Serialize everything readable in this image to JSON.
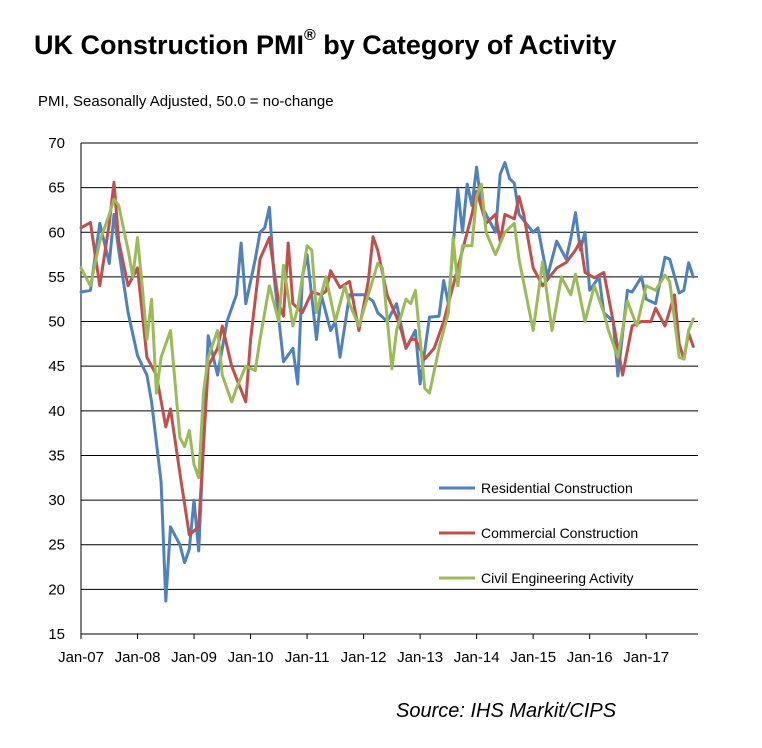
{
  "title": "UK Construction PMI",
  "title_mark": "®",
  "title_suffix": " by Category of Activity",
  "subtitle": "PMI, Seasonally Adjusted, 50.0 = no-change",
  "source": "Source: IHS Markit/CIPS",
  "chart_data": {
    "type": "line",
    "title": "UK Construction PMI® by Category of Activity",
    "ylabel": "PMI, Seasonally Adjusted, 50.0 = no-change",
    "ylim": [
      15,
      70
    ],
    "yticks": [
      15,
      20,
      25,
      30,
      35,
      40,
      45,
      50,
      55,
      60,
      65,
      70
    ],
    "xticks": [
      "Jan-07",
      "Jan-08",
      "Jan-09",
      "Jan-10",
      "Jan-11",
      "Jan-12",
      "Jan-13",
      "Jan-14",
      "Jan-15",
      "Jan-16",
      "Jan-17"
    ],
    "x_start": "Jan-07",
    "grid": true,
    "legend_position": "bottom-right",
    "series": [
      {
        "name": "Residential Construction",
        "color": "#4f81bd",
        "points": [
          [
            "Jan-07",
            53.3
          ],
          [
            "Mar-07",
            53.5
          ],
          [
            "May-07",
            61
          ],
          [
            "Jul-07",
            56.5
          ],
          [
            "Aug-07",
            62
          ],
          [
            "Sep-07",
            58
          ],
          [
            "Nov-07",
            51
          ],
          [
            "Jan-08",
            46.2
          ],
          [
            "Mar-08",
            44
          ],
          [
            "Apr-08",
            41
          ],
          [
            "Jun-08",
            32
          ],
          [
            "Jul-08",
            18.7
          ],
          [
            "Aug-08",
            27
          ],
          [
            "Oct-08",
            25
          ],
          [
            "Nov-08",
            23
          ],
          [
            "Dec-08",
            24.5
          ],
          [
            "Jan-09",
            30
          ],
          [
            "Feb-09",
            24.3
          ],
          [
            "Apr-09",
            48.4
          ],
          [
            "Jun-09",
            44
          ],
          [
            "Aug-09",
            50
          ],
          [
            "Oct-09",
            53
          ],
          [
            "Nov-09",
            58.8
          ],
          [
            "Dec-09",
            52
          ],
          [
            "Feb-10",
            57
          ],
          [
            "Mar-10",
            60
          ],
          [
            "Apr-10",
            60.5
          ],
          [
            "May-10",
            62.8
          ],
          [
            "Jun-10",
            55
          ],
          [
            "Aug-10",
            45.5
          ],
          [
            "Oct-10",
            47
          ],
          [
            "Nov-10",
            43
          ],
          [
            "Dec-10",
            55
          ],
          [
            "Jan-11",
            57.5
          ],
          [
            "Mar-11",
            48
          ],
          [
            "Apr-11",
            53
          ],
          [
            "Jun-11",
            49
          ],
          [
            "Jul-11",
            50
          ],
          [
            "Aug-11",
            46
          ],
          [
            "Oct-11",
            53
          ],
          [
            "Jan-12",
            53
          ],
          [
            "Mar-12",
            52.3
          ],
          [
            "Apr-12",
            51
          ],
          [
            "Jun-12",
            50
          ],
          [
            "Aug-12",
            52
          ],
          [
            "Oct-12",
            47
          ],
          [
            "Dec-12",
            49
          ],
          [
            "Jan-13",
            43
          ],
          [
            "Mar-13",
            50.5
          ],
          [
            "May-13",
            50.6
          ],
          [
            "Jun-13",
            54.6
          ],
          [
            "Jul-13",
            52
          ],
          [
            "Sep-13",
            64.8
          ],
          [
            "Oct-13",
            60
          ],
          [
            "Nov-13",
            65.4
          ],
          [
            "Dec-13",
            63
          ],
          [
            "Jan-14",
            67.3
          ],
          [
            "Feb-14",
            63
          ],
          [
            "May-14",
            60
          ],
          [
            "Jun-14",
            66.5
          ],
          [
            "Jul-14",
            67.8
          ],
          [
            "Aug-14",
            66
          ],
          [
            "Sep-14",
            65.5
          ],
          [
            "Oct-14",
            62
          ],
          [
            "Jan-15",
            60
          ],
          [
            "Feb-15",
            60.5
          ],
          [
            "Apr-15",
            55
          ],
          [
            "Jun-15",
            59
          ],
          [
            "Aug-15",
            57
          ],
          [
            "Sep-15",
            59.3
          ],
          [
            "Oct-15",
            62.2
          ],
          [
            "Nov-15",
            58
          ],
          [
            "Dec-15",
            60
          ],
          [
            "Jan-16",
            53.5
          ],
          [
            "Mar-16",
            55
          ],
          [
            "Apr-16",
            51
          ],
          [
            "Jun-16",
            50
          ],
          [
            "Jul-16",
            43.9
          ],
          [
            "Sep-16",
            53.5
          ],
          [
            "Oct-16",
            53.3
          ],
          [
            "Dec-16",
            55
          ],
          [
            "Jan-17",
            52.5
          ],
          [
            "Mar-17",
            52
          ],
          [
            "May-17",
            57.2
          ],
          [
            "Jun-17",
            57
          ],
          [
            "Aug-17",
            53.2
          ],
          [
            "Sep-17",
            53.5
          ],
          [
            "Oct-17",
            56.6
          ],
          [
            "Nov-17",
            55
          ]
        ]
      },
      {
        "name": "Commercial Construction",
        "color": "#c0504d",
        "points": [
          [
            "Jan-07",
            60.5
          ],
          [
            "Mar-07",
            61.1
          ],
          [
            "May-07",
            54
          ],
          [
            "Jul-07",
            61
          ],
          [
            "Aug-07",
            65.6
          ],
          [
            "Sep-07",
            59
          ],
          [
            "Nov-07",
            54
          ],
          [
            "Jan-08",
            56
          ],
          [
            "Mar-08",
            46
          ],
          [
            "May-08",
            44
          ],
          [
            "Jul-08",
            38.2
          ],
          [
            "Aug-08",
            40.2
          ],
          [
            "Oct-08",
            33
          ],
          [
            "Dec-08",
            26.1
          ],
          [
            "Feb-09",
            27
          ],
          [
            "Apr-09",
            45
          ],
          [
            "Jun-09",
            47
          ],
          [
            "Jul-09",
            49.5
          ],
          [
            "Sep-09",
            45
          ],
          [
            "Dec-09",
            41
          ],
          [
            "Jan-10",
            48
          ],
          [
            "Mar-10",
            57
          ],
          [
            "May-10",
            59.4
          ],
          [
            "Jul-10",
            52
          ],
          [
            "Aug-10",
            50.6
          ],
          [
            "Sep-10",
            58.8
          ],
          [
            "Oct-10",
            52
          ],
          [
            "Dec-10",
            51
          ],
          [
            "Feb-11",
            53.3
          ],
          [
            "Apr-11",
            53
          ],
          [
            "May-11",
            53.4
          ],
          [
            "Jun-11",
            55.7
          ],
          [
            "Aug-11",
            53.8
          ],
          [
            "Oct-11",
            54.5
          ],
          [
            "Dec-11",
            49
          ],
          [
            "Feb-12",
            54.5
          ],
          [
            "Mar-12",
            59.5
          ],
          [
            "Apr-12",
            58
          ],
          [
            "Jun-12",
            53
          ],
          [
            "Aug-12",
            50.5
          ],
          [
            "Sep-12",
            49
          ],
          [
            "Oct-12",
            47
          ],
          [
            "Nov-12",
            48
          ],
          [
            "Dec-12",
            48
          ],
          [
            "Feb-13",
            45.8
          ],
          [
            "Apr-13",
            47
          ],
          [
            "Jun-13",
            50
          ],
          [
            "Aug-13",
            54
          ],
          [
            "Oct-13",
            58
          ],
          [
            "Dec-13",
            62
          ],
          [
            "Jan-14",
            64.6
          ],
          [
            "Mar-14",
            61
          ],
          [
            "May-14",
            62
          ],
          [
            "Jun-14",
            59
          ],
          [
            "Jul-14",
            62
          ],
          [
            "Sep-14",
            61.5
          ],
          [
            "Oct-14",
            64
          ],
          [
            "Nov-14",
            62
          ],
          [
            "Jan-15",
            56
          ],
          [
            "Mar-15",
            54
          ],
          [
            "Jun-15",
            56
          ],
          [
            "Aug-15",
            56.6
          ],
          [
            "Oct-15",
            58
          ],
          [
            "Nov-15",
            59
          ],
          [
            "Dec-15",
            55.5
          ],
          [
            "Feb-16",
            54.9
          ],
          [
            "Apr-16",
            55.5
          ],
          [
            "Jun-16",
            50
          ],
          [
            "Aug-16",
            44
          ],
          [
            "Oct-16",
            49.5
          ],
          [
            "Dec-16",
            50
          ],
          [
            "Feb-17",
            50
          ],
          [
            "Mar-17",
            51.5
          ],
          [
            "May-17",
            49.5
          ],
          [
            "Jul-17",
            53
          ],
          [
            "Aug-17",
            47.5
          ],
          [
            "Sep-17",
            45.8
          ],
          [
            "Oct-17",
            48.7
          ],
          [
            "Nov-17",
            47.2
          ]
        ]
      },
      {
        "name": "Civil Engineering Activity",
        "color": "#9bbb59",
        "points": [
          [
            "Jan-07",
            56
          ],
          [
            "Mar-07",
            54
          ],
          [
            "May-07",
            59
          ],
          [
            "Jul-07",
            62
          ],
          [
            "Aug-07",
            63.7
          ],
          [
            "Sep-07",
            63
          ],
          [
            "Nov-07",
            58
          ],
          [
            "Dec-07",
            55
          ],
          [
            "Jan-08",
            59.4
          ],
          [
            "Feb-08",
            54
          ],
          [
            "Mar-08",
            48
          ],
          [
            "Apr-08",
            52.5
          ],
          [
            "May-08",
            42
          ],
          [
            "Jun-08",
            46
          ],
          [
            "Aug-08",
            49
          ],
          [
            "Oct-08",
            37
          ],
          [
            "Nov-08",
            36
          ],
          [
            "Dec-08",
            37.8
          ],
          [
            "Jan-09",
            34
          ],
          [
            "Feb-09",
            32.5
          ],
          [
            "Mar-09",
            42
          ],
          [
            "Apr-09",
            46
          ],
          [
            "Jun-09",
            49
          ],
          [
            "Jul-09",
            44
          ],
          [
            "Sep-09",
            41
          ],
          [
            "Oct-09",
            42.5
          ],
          [
            "Dec-09",
            45
          ],
          [
            "Feb-10",
            44.5
          ],
          [
            "Mar-10",
            48
          ],
          [
            "May-10",
            54
          ],
          [
            "Jul-10",
            50
          ],
          [
            "Aug-10",
            56.3
          ],
          [
            "Oct-10",
            49.5
          ],
          [
            "Nov-10",
            51.5
          ],
          [
            "Jan-11",
            58.5
          ],
          [
            "Feb-11",
            58
          ],
          [
            "Mar-11",
            51
          ],
          [
            "May-11",
            55
          ],
          [
            "Jul-11",
            50
          ],
          [
            "Sep-11",
            54
          ],
          [
            "Oct-11",
            52
          ],
          [
            "Dec-11",
            49.5
          ],
          [
            "Feb-12",
            53
          ],
          [
            "Apr-12",
            56.5
          ],
          [
            "May-12",
            56
          ],
          [
            "Jul-12",
            44.7
          ],
          [
            "Aug-12",
            49
          ],
          [
            "Oct-12",
            52.5
          ],
          [
            "Nov-12",
            52
          ],
          [
            "Dec-12",
            53.5
          ],
          [
            "Feb-13",
            42.5
          ],
          [
            "Mar-13",
            42
          ],
          [
            "May-13",
            47
          ],
          [
            "Jul-13",
            51
          ],
          [
            "Aug-13",
            59.4
          ],
          [
            "Sep-13",
            54
          ],
          [
            "Oct-13",
            58.5
          ],
          [
            "Dec-13",
            58.5
          ],
          [
            "Jan-14",
            64
          ],
          [
            "Feb-14",
            65.4
          ],
          [
            "Mar-14",
            60
          ],
          [
            "May-14",
            57.5
          ],
          [
            "Jul-14",
            60
          ],
          [
            "Sep-14",
            61
          ],
          [
            "Oct-14",
            57
          ],
          [
            "Jan-15",
            49
          ],
          [
            "Mar-15",
            56.7
          ],
          [
            "May-15",
            49
          ],
          [
            "Jul-15",
            55
          ],
          [
            "Sep-15",
            53
          ],
          [
            "Oct-15",
            55.3
          ],
          [
            "Dec-15",
            50
          ],
          [
            "Feb-16",
            54
          ],
          [
            "Apr-16",
            51
          ],
          [
            "May-16",
            49
          ],
          [
            "Jul-16",
            46
          ],
          [
            "Sep-16",
            52.3
          ],
          [
            "Nov-16",
            49.5
          ],
          [
            "Jan-17",
            54
          ],
          [
            "Mar-17",
            53.5
          ],
          [
            "May-17",
            55.2
          ],
          [
            "Jun-17",
            54.5
          ],
          [
            "Aug-17",
            46
          ],
          [
            "Sep-17",
            45.8
          ],
          [
            "Oct-17",
            49
          ],
          [
            "Nov-17",
            50.3
          ]
        ]
      }
    ]
  }
}
